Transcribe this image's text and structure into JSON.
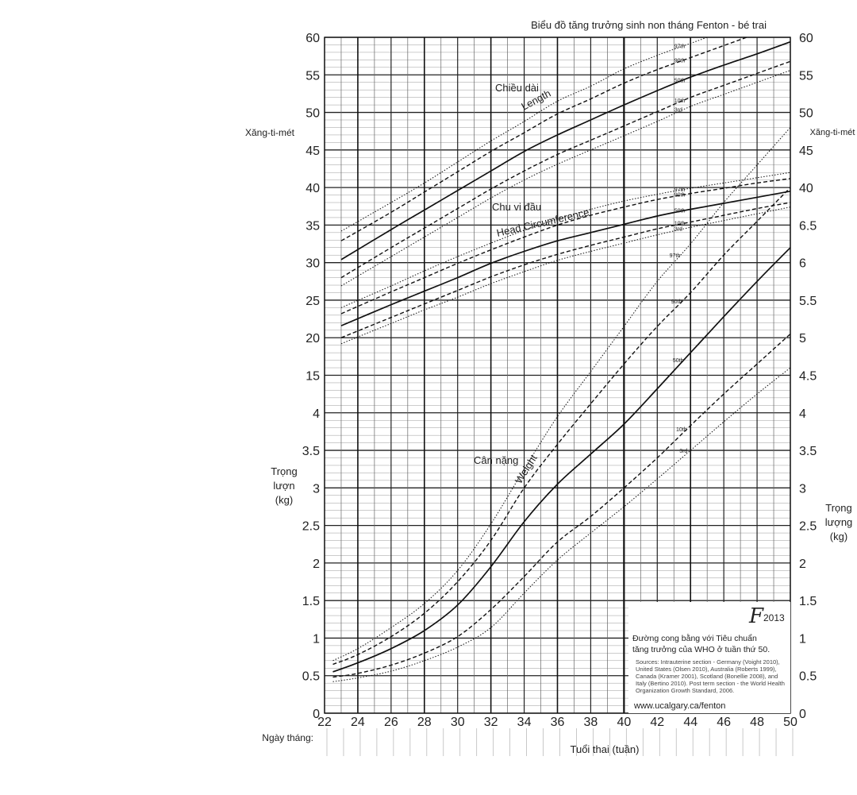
{
  "chart_data": {
    "type": "line",
    "title": "Biểu đồ tăng trưởng sinh non tháng Fenton - bé trai",
    "xlabel": "Tuổi thai (tuần)",
    "x_range": [
      22,
      50
    ],
    "x_ticks": [
      22,
      24,
      26,
      28,
      30,
      32,
      34,
      36,
      38,
      40,
      42,
      44,
      46,
      48,
      50
    ],
    "date_row_label": "Ngày tháng:",
    "left_axis": {
      "upper_label": "Xăng-ti-mét",
      "upper_range_cm": [
        15,
        60
      ],
      "upper_ticks": [
        "60",
        "55",
        "50",
        "45",
        "40",
        "35",
        "30",
        "25",
        "20",
        "15"
      ],
      "lower_label": [
        "Trọng",
        "lượn",
        "(kg)"
      ],
      "lower_range_kg": [
        0,
        4
      ],
      "lower_ticks": [
        "4",
        "3.5",
        "3",
        "2.5",
        "2",
        "1.5",
        "1",
        "0.5",
        "0"
      ]
    },
    "right_axis": {
      "upper_label": "Xăng-ti-mét",
      "upper_ticks": [
        "60",
        "55",
        "50",
        "45",
        "40"
      ],
      "lower_label": [
        "Trọng",
        "lượng",
        "(kg)"
      ],
      "lower_ticks": [
        "6.5",
        "6",
        "5.5",
        "5",
        "4.5",
        "4",
        "3.5",
        "3",
        "2.5",
        "2",
        "1.5",
        "1",
        "0.5",
        "0"
      ]
    },
    "curve_labels": {
      "length_vi": "Chiều dài",
      "length_en": "Length",
      "head_vi": "Chu vi đầu",
      "head_en": "Head Circumference",
      "weight_vi": "Cân nặng",
      "weight_en": "Weight"
    },
    "percentile_labels": [
      "97th",
      "90th",
      "50th",
      "10th",
      "3rd"
    ],
    "length_cm": {
      "x": [
        23,
        26,
        28,
        30,
        32,
        34,
        36,
        38,
        40,
        42,
        44,
        46,
        48,
        50
      ],
      "series": [
        {
          "name": "97th",
          "values": [
            34.2,
            38.0,
            40.6,
            43.4,
            46.2,
            48.8,
            51.5,
            53.5,
            55.8,
            57.6,
            59.2,
            60.8,
            62.4,
            64.0
          ]
        },
        {
          "name": "90th",
          "values": [
            32.9,
            36.7,
            39.4,
            42.1,
            44.8,
            47.3,
            49.8,
            51.8,
            53.9,
            55.7,
            57.3,
            58.9,
            60.5,
            62.0
          ]
        },
        {
          "name": "50th",
          "values": [
            30.4,
            34.4,
            37.0,
            39.6,
            42.2,
            44.8,
            47.0,
            49.0,
            51.0,
            52.9,
            54.7,
            56.3,
            57.8,
            59.4
          ]
        },
        {
          "name": "10th",
          "values": [
            28.0,
            32.0,
            34.6,
            37.2,
            39.8,
            42.2,
            44.4,
            46.3,
            48.2,
            50.1,
            52.0,
            53.6,
            55.2,
            56.8
          ]
        },
        {
          "name": "3rd",
          "values": [
            26.9,
            30.8,
            33.4,
            36.0,
            38.6,
            41.0,
            43.1,
            45.0,
            46.9,
            48.8,
            50.8,
            52.4,
            54.0,
            55.6
          ]
        }
      ]
    },
    "head_circumference_cm": {
      "x": [
        23,
        26,
        28,
        30,
        32,
        34,
        36,
        38,
        40,
        42,
        44,
        46,
        48,
        50
      ],
      "series": [
        {
          "name": "97th",
          "values": [
            24.0,
            26.9,
            28.9,
            30.8,
            32.6,
            34.3,
            35.8,
            37.1,
            38.2,
            39.1,
            39.9,
            40.6,
            41.3,
            42.0
          ]
        },
        {
          "name": "90th",
          "values": [
            23.2,
            26.1,
            28.0,
            29.9,
            31.7,
            33.4,
            35.0,
            36.3,
            37.4,
            38.4,
            39.2,
            39.9,
            40.6,
            41.2
          ]
        },
        {
          "name": "50th",
          "values": [
            21.6,
            24.4,
            26.2,
            28.0,
            29.9,
            31.5,
            32.9,
            34.0,
            35.1,
            36.2,
            37.1,
            37.9,
            38.7,
            39.5
          ]
        },
        {
          "name": "10th",
          "values": [
            20.0,
            22.7,
            24.5,
            26.3,
            28.1,
            29.7,
            31.1,
            32.3,
            33.4,
            34.5,
            35.4,
            36.3,
            37.2,
            38.0
          ]
        },
        {
          "name": "3rd",
          "values": [
            19.2,
            21.9,
            23.7,
            25.4,
            27.2,
            28.8,
            30.3,
            31.5,
            32.6,
            33.7,
            34.7,
            35.6,
            36.5,
            37.4
          ]
        }
      ]
    },
    "weight_kg": {
      "x": [
        22.5,
        24,
        26,
        28,
        30,
        32,
        34,
        36,
        38,
        40,
        42,
        44,
        46,
        48,
        50
      ],
      "series": [
        {
          "name": "97th",
          "values": [
            0.7,
            0.86,
            1.14,
            1.46,
            1.9,
            2.52,
            3.25,
            3.95,
            4.55,
            5.15,
            5.75,
            6.25,
            6.8,
            7.3,
            7.8
          ]
        },
        {
          "name": "90th",
          "values": [
            0.65,
            0.78,
            1.02,
            1.33,
            1.75,
            2.3,
            3.0,
            3.58,
            4.12,
            4.65,
            5.15,
            5.6,
            6.1,
            6.55,
            7.0
          ]
        },
        {
          "name": "50th",
          "values": [
            0.55,
            0.67,
            0.86,
            1.1,
            1.44,
            1.95,
            2.55,
            3.05,
            3.45,
            3.85,
            4.32,
            4.8,
            5.28,
            5.75,
            6.2
          ]
        },
        {
          "name": "10th",
          "values": [
            0.48,
            0.53,
            0.64,
            0.8,
            1.02,
            1.38,
            1.82,
            2.28,
            2.62,
            3.0,
            3.4,
            3.83,
            4.25,
            4.65,
            5.05
          ]
        },
        {
          "name": "3rd",
          "values": [
            0.42,
            0.47,
            0.56,
            0.7,
            0.88,
            1.14,
            1.6,
            2.04,
            2.4,
            2.75,
            3.12,
            3.5,
            3.88,
            4.25,
            4.6
          ]
        }
      ]
    }
  },
  "logo": {
    "symbol": "F",
    "year": "2013"
  },
  "note": {
    "title_line1": "Đường cong bằng với Tiêu chuẩn",
    "title_line2": "tăng trưởng của WHO ở tuần thứ 50.",
    "sources_lines": [
      "Sources: Intrauterine section - Germany (Voight 2010),",
      "United States (Olsen 2010), Australia (Roberts 1999),",
      "Canada (Kramer 2001), Scotland (Bonellie 2008), and",
      "Italy (Bertino 2010). Post term section - the World Health",
      "Organization Growth Standard, 2006."
    ],
    "url": "www.ucalgary.ca/fenton"
  }
}
